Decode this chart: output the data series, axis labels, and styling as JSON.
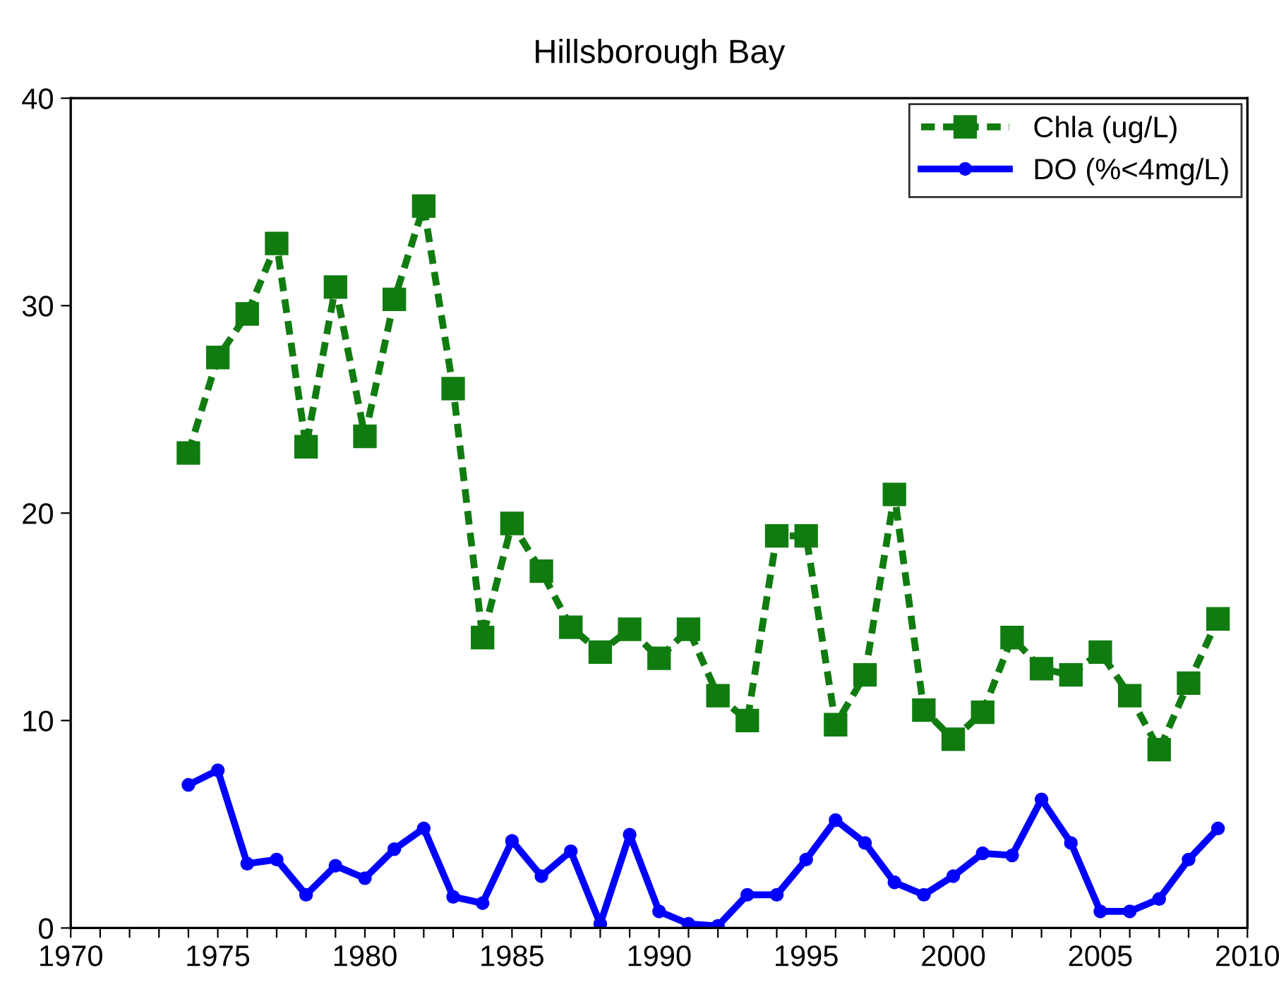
{
  "chart_data": {
    "type": "line",
    "title": "Hillsborough Bay",
    "x": [
      1974,
      1975,
      1976,
      1977,
      1978,
      1979,
      1980,
      1981,
      1982,
      1983,
      1984,
      1985,
      1986,
      1987,
      1988,
      1989,
      1990,
      1991,
      1992,
      1993,
      1994,
      1995,
      1996,
      1997,
      1998,
      1999,
      2000,
      2001,
      2002,
      2003,
      2004,
      2005,
      2006,
      2007,
      2008,
      2009
    ],
    "series": [
      {
        "name": "Chla (ug/L)",
        "color": "#107c10",
        "marker": "square",
        "line_style": "dashed",
        "values": [
          22.9,
          27.5,
          29.6,
          33.0,
          23.2,
          30.9,
          23.7,
          30.3,
          34.8,
          26.0,
          14.0,
          19.5,
          17.2,
          14.5,
          13.3,
          14.4,
          13.0,
          14.4,
          11.2,
          10.0,
          18.9,
          18.9,
          9.8,
          12.2,
          20.9,
          10.5,
          9.1,
          10.4,
          14.0,
          12.5,
          12.2,
          13.3,
          11.2,
          8.6,
          11.8,
          14.9
        ]
      },
      {
        "name": "DO (%<4mg/L)",
        "color": "#0000ff",
        "marker": "circle",
        "line_style": "solid",
        "values": [
          6.9,
          7.6,
          3.1,
          3.3,
          1.6,
          3.0,
          2.4,
          3.8,
          4.8,
          1.5,
          1.2,
          4.2,
          2.5,
          3.7,
          0.2,
          4.5,
          0.8,
          0.2,
          0.1,
          1.6,
          1.6,
          3.3,
          5.2,
          4.1,
          2.2,
          1.6,
          2.5,
          3.6,
          3.5,
          6.2,
          4.1,
          0.8,
          0.8,
          1.4,
          3.3,
          4.8
        ]
      }
    ],
    "xlim": [
      1970,
      2010
    ],
    "xticks": [
      1970,
      {
        "value": 1971,
        "label": null
      },
      {
        "value": 1972,
        "label": null
      },
      {
        "value": 1973,
        "label": null
      },
      {
        "value": 1974,
        "label": null
      },
      1975,
      {
        "value": 1976,
        "label": null
      },
      {
        "value": 1977,
        "label": null
      },
      {
        "value": 1978,
        "label": null
      },
      {
        "value": 1979,
        "label": null
      },
      1980,
      {
        "value": 1981,
        "label": null
      },
      {
        "value": 1982,
        "label": null
      },
      {
        "value": 1983,
        "label": null
      },
      {
        "value": 1984,
        "label": null
      },
      1985,
      {
        "value": 1986,
        "label": null
      },
      {
        "value": 1987,
        "label": null
      },
      {
        "value": 1988,
        "label": null
      },
      {
        "value": 1989,
        "label": null
      },
      1990,
      {
        "value": 1991,
        "label": null
      },
      {
        "value": 1992,
        "label": null
      },
      {
        "value": 1993,
        "label": null
      },
      {
        "value": 1994,
        "label": null
      },
      1995,
      {
        "value": 1996,
        "label": null
      },
      {
        "value": 1997,
        "label": null
      },
      {
        "value": 1998,
        "label": null
      },
      {
        "value": 1999,
        "label": null
      },
      2000,
      {
        "value": 2001,
        "label": null
      },
      {
        "value": 2002,
        "label": null
      },
      {
        "value": 2003,
        "label": null
      },
      {
        "value": 2004,
        "label": null
      },
      2005,
      {
        "value": 2006,
        "label": null
      },
      {
        "value": 2007,
        "label": null
      },
      {
        "value": 2008,
        "label": null
      },
      {
        "value": 2009,
        "label": null
      },
      2010
    ],
    "ylim": [
      0,
      40
    ],
    "yticks": [
      0,
      10,
      20,
      30,
      40
    ],
    "grid": false,
    "legend": "top right"
  }
}
